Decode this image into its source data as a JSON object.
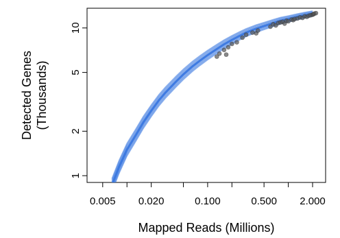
{
  "chart_data": {
    "type": "line",
    "xlabel": "Mapped Reads (Millions)",
    "ylabel_lines": [
      "Detected Genes",
      "(Thousands)"
    ],
    "x_scale": "log",
    "y_scale": "log",
    "xlim": [
      0.0032,
      2.9
    ],
    "ylim": [
      0.9,
      13.6
    ],
    "x_ticks": [
      0.005,
      0.01,
      0.02,
      0.05,
      0.1,
      0.2,
      0.5,
      1,
      2
    ],
    "x_tick_labels": [
      {
        "value": 0.005,
        "label": "0.005"
      },
      {
        "value": 0.02,
        "label": "0.020"
      },
      {
        "value": 0.1,
        "label": "0.100"
      },
      {
        "value": 0.5,
        "label": "0.500"
      },
      {
        "value": 2,
        "label": "2.000"
      }
    ],
    "y_ticks": [
      {
        "value": 1,
        "label": "1"
      },
      {
        "value": 2,
        "label": "2"
      },
      {
        "value": 5,
        "label": "5"
      },
      {
        "value": 10,
        "label": "10"
      }
    ],
    "series": [
      {
        "values_x": [
          0.0065,
          0.008,
          0.01,
          0.013,
          0.016,
          0.02,
          0.025,
          0.03,
          0.04,
          0.05,
          0.065,
          0.08,
          0.1,
          0.13,
          0.16,
          0.2,
          0.25,
          0.3,
          0.4,
          0.5,
          0.65,
          0.8,
          1.0,
          1.3,
          1.6,
          2.0
        ],
        "values_y": [
          0.86,
          1.15,
          1.5,
          1.9,
          2.3,
          2.75,
          3.25,
          3.65,
          4.3,
          4.85,
          5.5,
          6.0,
          6.55,
          7.2,
          7.75,
          8.3,
          8.85,
          9.3,
          9.9,
          10.3,
          10.8,
          11.2,
          11.5,
          11.9,
          12.2,
          12.5
        ],
        "color": "#3b78e0"
      }
    ],
    "points": {
      "color": "#555555",
      "x": [
        0.13,
        0.14,
        0.16,
        0.17,
        0.18,
        0.2,
        0.23,
        0.27,
        0.3,
        0.36,
        0.4,
        0.42,
        0.6,
        0.65,
        0.7,
        0.75,
        0.8,
        0.85,
        0.9,
        0.95,
        1.0,
        1.1,
        1.15,
        1.2,
        1.3,
        1.4,
        1.5,
        1.6,
        1.7,
        1.8,
        1.9,
        2.0,
        2.05,
        2.1,
        2.2
      ],
      "y": [
        6.4,
        6.7,
        7.1,
        6.6,
        7.4,
        7.8,
        8.0,
        8.6,
        9.0,
        9.3,
        9.2,
        9.6,
        10.2,
        10.6,
        10.4,
        10.8,
        10.9,
        11.0,
        10.7,
        11.2,
        11.1,
        11.4,
        11.3,
        11.5,
        11.6,
        11.8,
        11.7,
        12.0,
        11.9,
        12.1,
        12.2,
        12.3,
        12.4,
        12.5,
        12.6
      ]
    },
    "colors": {
      "curve": "#3b78e0",
      "points": "#555555",
      "axis": "#000000"
    }
  }
}
